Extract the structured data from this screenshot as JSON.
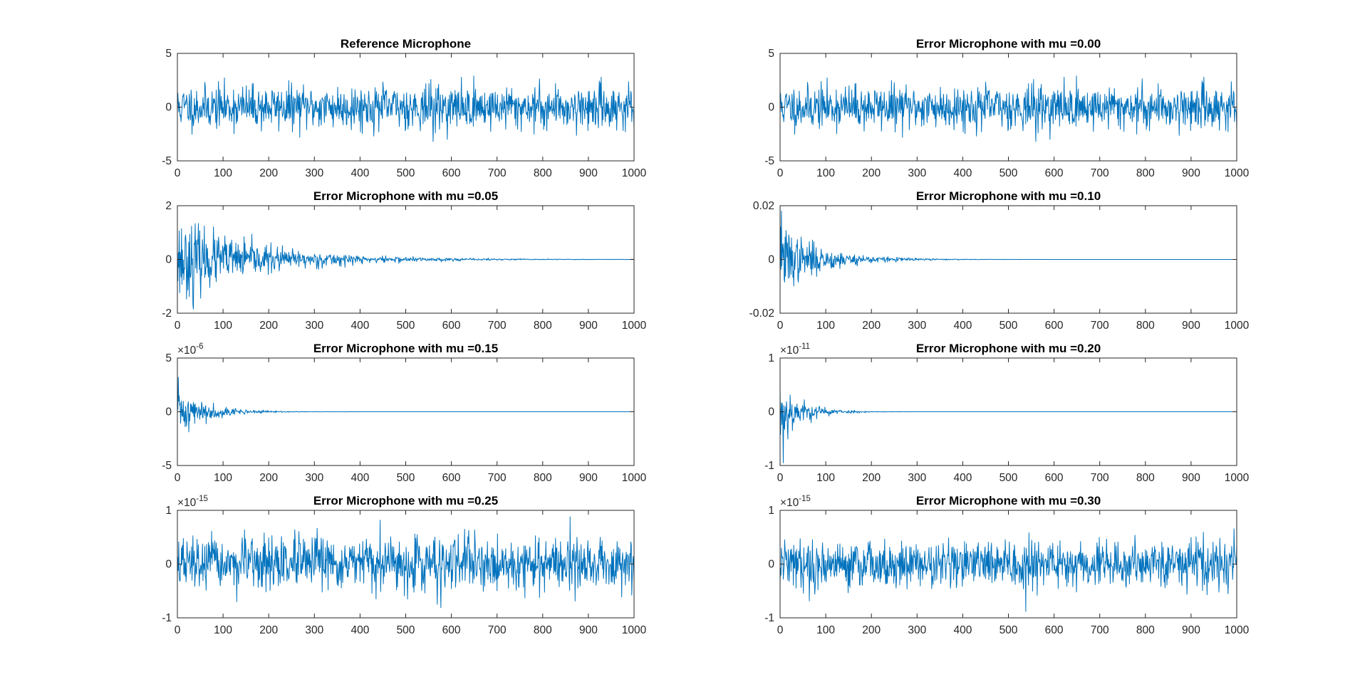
{
  "figure": {
    "background": "#ffffff",
    "line_color": "#0072bd",
    "axis_color": "#262626"
  },
  "chart_data": [
    {
      "type": "line",
      "title": "Reference Microphone",
      "xlim": [
        0,
        1000
      ],
      "xticks": [
        0,
        100,
        200,
        300,
        400,
        500,
        600,
        700,
        800,
        900,
        1000
      ],
      "ylim": [
        -5,
        5
      ],
      "yticks": [
        "-5",
        "0",
        "5"
      ],
      "y_exponent": "",
      "series": [
        {
          "kind": "noise",
          "amplitude": 1.0,
          "decay": 0,
          "seed": 11,
          "peak_index": 560,
          "peak_value": -3.2
        }
      ]
    },
    {
      "type": "line",
      "title": "Error Microphone with mu =0.00",
      "xlim": [
        0,
        1000
      ],
      "xticks": [
        0,
        100,
        200,
        300,
        400,
        500,
        600,
        700,
        800,
        900,
        1000
      ],
      "ylim": [
        -5,
        5
      ],
      "yticks": [
        "-5",
        "0",
        "5"
      ],
      "y_exponent": "",
      "series": [
        {
          "kind": "noise",
          "amplitude": 1.0,
          "decay": 0,
          "seed": 11,
          "peak_index": 560,
          "peak_value": -3.2
        }
      ]
    },
    {
      "type": "line",
      "title": "Error Microphone with mu =0.05",
      "xlim": [
        0,
        1000
      ],
      "xticks": [
        0,
        100,
        200,
        300,
        400,
        500,
        600,
        700,
        800,
        900,
        1000
      ],
      "ylim": [
        -2,
        2
      ],
      "yticks": [
        "-2",
        "0",
        "2"
      ],
      "y_exponent": "",
      "series": [
        {
          "kind": "decaying",
          "amplitude": 0.75,
          "decay": 0.0055,
          "seed": 23,
          "peak_index": 35,
          "peak_value": -1.85
        }
      ]
    },
    {
      "type": "line",
      "title": "Error Microphone with mu =0.10",
      "xlim": [
        0,
        1000
      ],
      "xticks": [
        0,
        100,
        200,
        300,
        400,
        500,
        600,
        700,
        800,
        900,
        1000
      ],
      "ylim": [
        -0.02,
        0.02
      ],
      "yticks": [
        "-0.02",
        "0",
        "0.02"
      ],
      "y_exponent": "",
      "series": [
        {
          "kind": "decaying",
          "amplitude": 0.0065,
          "decay": 0.011,
          "seed": 37,
          "peak_index": 3,
          "peak_value": 0.018
        }
      ]
    },
    {
      "type": "line",
      "title": "Error Microphone with mu =0.15",
      "xlim": [
        0,
        1000
      ],
      "xticks": [
        0,
        100,
        200,
        300,
        400,
        500,
        600,
        700,
        800,
        900,
        1000
      ],
      "ylim": [
        -5,
        5
      ],
      "yticks": [
        "-5",
        "0",
        "5"
      ],
      "y_exponent": "-6",
      "series": [
        {
          "kind": "decaying",
          "amplitude": 1.2,
          "decay": 0.016,
          "seed": 41,
          "peak_index": 2,
          "peak_value": 3.2
        }
      ]
    },
    {
      "type": "line",
      "title": "Error Microphone with mu =0.20",
      "xlim": [
        0,
        1000
      ],
      "xticks": [
        0,
        100,
        200,
        300,
        400,
        500,
        600,
        700,
        800,
        900,
        1000
      ],
      "ylim": [
        -1,
        1
      ],
      "yticks": [
        "-1",
        "0",
        "1"
      ],
      "y_exponent": "-11",
      "series": [
        {
          "kind": "decaying",
          "amplitude": 0.3,
          "decay": 0.02,
          "seed": 53,
          "peak_index": 7,
          "peak_value": -0.95
        }
      ]
    },
    {
      "type": "line",
      "title": "Error Microphone with mu =0.25",
      "xlim": [
        0,
        1000
      ],
      "xticks": [
        0,
        100,
        200,
        300,
        400,
        500,
        600,
        700,
        800,
        900,
        1000
      ],
      "ylim": [
        -1,
        1
      ],
      "yticks": [
        "-1",
        "0",
        "1"
      ],
      "y_exponent": "-15",
      "series": [
        {
          "kind": "noise",
          "amplitude": 0.24,
          "decay": 0,
          "seed": 67,
          "peak_index": 860,
          "peak_value": 0.88
        }
      ]
    },
    {
      "type": "line",
      "title": "Error Microphone with mu =0.30",
      "xlim": [
        0,
        1000
      ],
      "xticks": [
        0,
        100,
        200,
        300,
        400,
        500,
        600,
        700,
        800,
        900,
        1000
      ],
      "ylim": [
        -1,
        1
      ],
      "yticks": [
        "-1",
        "0",
        "1"
      ],
      "y_exponent": "-15",
      "series": [
        {
          "kind": "noise",
          "amplitude": 0.22,
          "decay": 0,
          "seed": 79,
          "peak_index": 538,
          "peak_value": -0.88
        }
      ]
    }
  ]
}
